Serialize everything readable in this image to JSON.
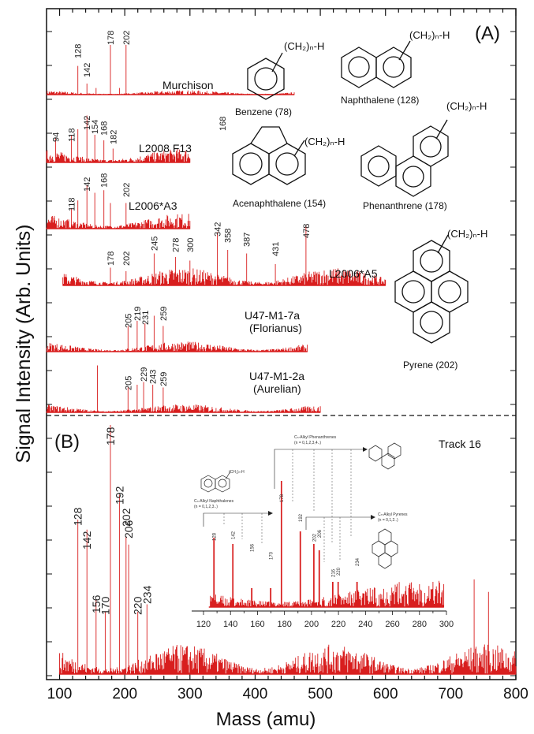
{
  "figure": {
    "ylabel": "Signal Intensity (Arb. Units)",
    "xlabel": "Mass (amu)",
    "xticks": [
      "100",
      "200",
      "300",
      "400",
      "500",
      "600",
      "700",
      "800"
    ]
  },
  "panel_a": {
    "label": "(A)",
    "structures": [
      {
        "name": "Benzene (78)",
        "substituent": "(CH₂)ₙ-H"
      },
      {
        "name": "Naphthalene (128)",
        "substituent": "(CH₂)ₙ-H"
      },
      {
        "name": "Acenaphthalene (154)",
        "substituent": "(CH₂)ₙ-H"
      },
      {
        "name": "Phenanthrene (178)",
        "substituent": "(CH₂)ₙ-H"
      },
      {
        "name": "Pyrene (202)",
        "substituent": "(CH₂)ₙ-H"
      }
    ],
    "samples": [
      {
        "name": "Murchison",
        "extra": "",
        "peak_labels": [
          "128",
          "142",
          "178",
          "202"
        ]
      },
      {
        "name": "L2008 F13",
        "extra": "",
        "peak_labels": [
          "94",
          "118",
          "142",
          "154",
          "168",
          "182",
          "168"
        ]
      },
      {
        "name": "L2006*A3",
        "extra": "",
        "peak_labels": [
          "118",
          "142",
          "168",
          "202"
        ]
      },
      {
        "name": "L2006*A5",
        "extra": "",
        "peak_labels": [
          "178",
          "202",
          "245",
          "278",
          "300",
          "342",
          "358",
          "387",
          "431",
          "478"
        ]
      },
      {
        "name": "U47-M1-7a",
        "extra": "(Florianus)",
        "peak_labels": [
          "205",
          "219",
          "231",
          "259"
        ]
      },
      {
        "name": "U47-M1-2a",
        "extra": "(Aurelian)",
        "peak_labels": [
          "205",
          "229",
          "243",
          "259"
        ]
      }
    ]
  },
  "panel_b": {
    "label": "(B)",
    "title": "Track 16",
    "peak_labels": [
      "128",
      "142",
      "156",
      "170",
      "178",
      "192",
      "202",
      "206",
      "220",
      "234"
    ],
    "inset": {
      "naph_title": "Cₙ-Alkyl Naphthalenes",
      "naph_sub": "(n = 0,1,2,3..)",
      "phen_title": "Cₙ-Alkyl Phenanthrenes",
      "phen_sub": "(n = 0,1,2,3,4..)",
      "pyr_title": "Cₙ-Alkyl Pyrenes",
      "pyr_sub": "(n = 0,1,2..)",
      "naph_substituent": "(CH₂)ₙ-H",
      "peak_labels": [
        "128",
        "142",
        "156",
        "170",
        "178",
        "192",
        "202",
        "206",
        "216",
        "220",
        "234"
      ],
      "xticks": [
        "120",
        "140",
        "160",
        "180",
        "200",
        "220",
        "240",
        "260",
        "280",
        "300"
      ]
    }
  },
  "chart_data": {
    "type": "line",
    "xlabel": "Mass (amu)",
    "ylabel": "Signal Intensity (Arb. Units)",
    "xlim": [
      80,
      800
    ],
    "grid": false,
    "series": [
      {
        "name": "Murchison",
        "xrange": [
          80,
          460
        ],
        "peaks": [
          [
            128,
            0.52
          ],
          [
            142,
            0.2
          ],
          [
            178,
            0.9
          ],
          [
            202,
            0.9
          ],
          [
            156,
            0.12
          ],
          [
            192,
            0.12
          ]
        ]
      },
      {
        "name": "L2008 F13",
        "xrange": [
          80,
          300
        ],
        "peaks": [
          [
            94,
            0.45
          ],
          [
            118,
            0.5
          ],
          [
            128,
            0.6
          ],
          [
            142,
            0.85
          ],
          [
            154,
            0.5
          ],
          [
            168,
            0.4
          ],
          [
            182,
            0.25
          ]
        ]
      },
      {
        "name": "L2006*A3",
        "xrange": [
          80,
          300
        ],
        "peaks": [
          [
            118,
            0.4
          ],
          [
            128,
            0.55
          ],
          [
            142,
            0.85
          ],
          [
            154,
            0.7
          ],
          [
            168,
            0.75
          ],
          [
            178,
            0.5
          ],
          [
            202,
            0.5
          ]
        ]
      },
      {
        "name": "L2006*A5",
        "xrange": [
          105,
          600
        ],
        "peaks": [
          [
            178,
            0.25
          ],
          [
            202,
            0.2
          ],
          [
            245,
            0.45
          ],
          [
            278,
            0.4
          ],
          [
            300,
            0.35
          ],
          [
            342,
            0.75
          ],
          [
            358,
            0.5
          ],
          [
            387,
            0.45
          ],
          [
            431,
            0.3
          ],
          [
            478,
            0.85
          ]
        ]
      },
      {
        "name": "U47-M1-7a (Florianus)",
        "xrange": [
          80,
          480
        ],
        "peaks": [
          [
            205,
            0.5
          ],
          [
            219,
            0.6
          ],
          [
            231,
            0.55
          ],
          [
            245,
            0.7
          ],
          [
            259,
            0.5
          ]
        ]
      },
      {
        "name": "U47-M1-2a (Aurelian)",
        "xrange": [
          80,
          500
        ],
        "peaks": [
          [
            158,
            0.85
          ],
          [
            205,
            0.45
          ],
          [
            219,
            0.5
          ],
          [
            229,
            0.55
          ],
          [
            243,
            0.5
          ],
          [
            259,
            0.45
          ]
        ]
      },
      {
        "name": "Track 16",
        "xrange": [
          100,
          800
        ],
        "peaks": [
          [
            128,
            0.62
          ],
          [
            142,
            0.58
          ],
          [
            156,
            0.3
          ],
          [
            170,
            0.25
          ],
          [
            178,
            1.0
          ],
          [
            192,
            0.72
          ],
          [
            202,
            0.55
          ],
          [
            206,
            0.52
          ],
          [
            220,
            0.25
          ],
          [
            234,
            0.28
          ],
          [
            736,
            0.38
          ],
          [
            758,
            0.33
          ]
        ]
      }
    ],
    "inset": {
      "xlim": [
        120,
        300
      ],
      "peaks": [
        [
          128,
          0.55
        ],
        [
          142,
          0.5
        ],
        [
          156,
          0.15
        ],
        [
          170,
          0.15
        ],
        [
          178,
          1.0
        ],
        [
          192,
          0.6
        ],
        [
          202,
          0.5
        ],
        [
          206,
          0.45
        ],
        [
          216,
          0.2
        ],
        [
          220,
          0.2
        ],
        [
          234,
          0.2
        ]
      ]
    },
    "colors": {
      "trace": "#d81e1e",
      "axis": "#111111"
    }
  }
}
